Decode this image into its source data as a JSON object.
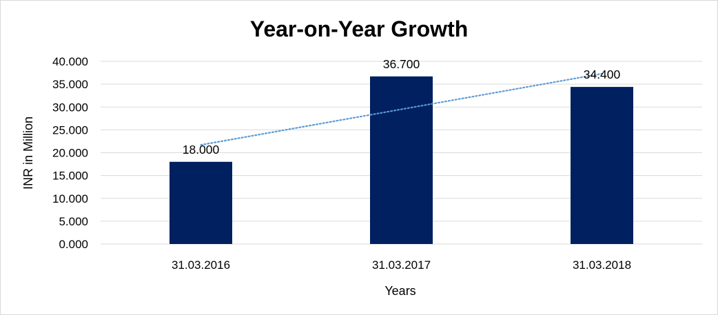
{
  "chart_data": {
    "type": "bar",
    "title": "Year-on-Year Growth",
    "xlabel": "Years",
    "ylabel": "INR in Million",
    "categories": [
      "31.03.2016",
      "31.03.2017",
      "31.03.2018"
    ],
    "series": [
      {
        "values": [
          18.0,
          36.7,
          34.4
        ],
        "color": "#002060"
      }
    ],
    "data_labels": [
      "18.000",
      "36.700",
      "34.400"
    ],
    "trendline": {
      "type": "linear",
      "style": "dotted",
      "color": "#5B9BD5",
      "start": 21.7,
      "end": 37.3
    },
    "ylim": [
      0,
      40
    ],
    "yticks": [
      0,
      5,
      10,
      15,
      20,
      25,
      30,
      35,
      40
    ],
    "ytick_labels": [
      "0.000",
      "5.000",
      "10.000",
      "15.000",
      "20.000",
      "25.000",
      "30.000",
      "35.000",
      "40.000"
    ],
    "grid": true,
    "gridline_color": "#d9d9d9",
    "legend": "none"
  }
}
